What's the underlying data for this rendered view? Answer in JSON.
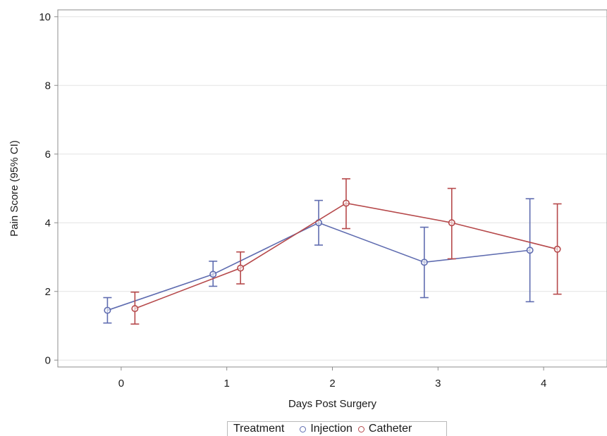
{
  "chart_data": {
    "type": "line",
    "title": "",
    "xlabel": "Days Post Surgery",
    "ylabel": "Pain Score (95% CI)",
    "x_categories": [
      "0",
      "1",
      "2",
      "3",
      "4"
    ],
    "xlim": [
      -0.6,
      4.6
    ],
    "ylim": [
      -0.2,
      10.2
    ],
    "y_ticks": [
      "0",
      "2",
      "4",
      "6",
      "8",
      "10"
    ],
    "grid": "horizontal",
    "legend_position": "bottom-center",
    "legend_title": "Treatment",
    "series": [
      {
        "name": "Injection",
        "color": "#5f6cb0",
        "x_offset": -0.13,
        "points": [
          {
            "x": 0,
            "y": 1.45,
            "lower": 1.08,
            "upper": 1.82
          },
          {
            "x": 1,
            "y": 2.5,
            "lower": 2.15,
            "upper": 2.88
          },
          {
            "x": 2,
            "y": 4.0,
            "lower": 3.35,
            "upper": 4.65
          },
          {
            "x": 3,
            "y": 2.85,
            "lower": 1.82,
            "upper": 3.87
          },
          {
            "x": 4,
            "y": 3.2,
            "lower": 1.7,
            "upper": 4.7
          }
        ]
      },
      {
        "name": "Catheter",
        "color": "#b6494b",
        "x_offset": 0.13,
        "points": [
          {
            "x": 0,
            "y": 1.5,
            "lower": 1.05,
            "upper": 1.98
          },
          {
            "x": 1,
            "y": 2.68,
            "lower": 2.22,
            "upper": 3.15
          },
          {
            "x": 2,
            "y": 4.57,
            "lower": 3.83,
            "upper": 5.28
          },
          {
            "x": 3,
            "y": 4.0,
            "lower": 2.95,
            "upper": 5.0
          },
          {
            "x": 4,
            "y": 3.23,
            "lower": 1.92,
            "upper": 4.55
          }
        ]
      }
    ]
  }
}
